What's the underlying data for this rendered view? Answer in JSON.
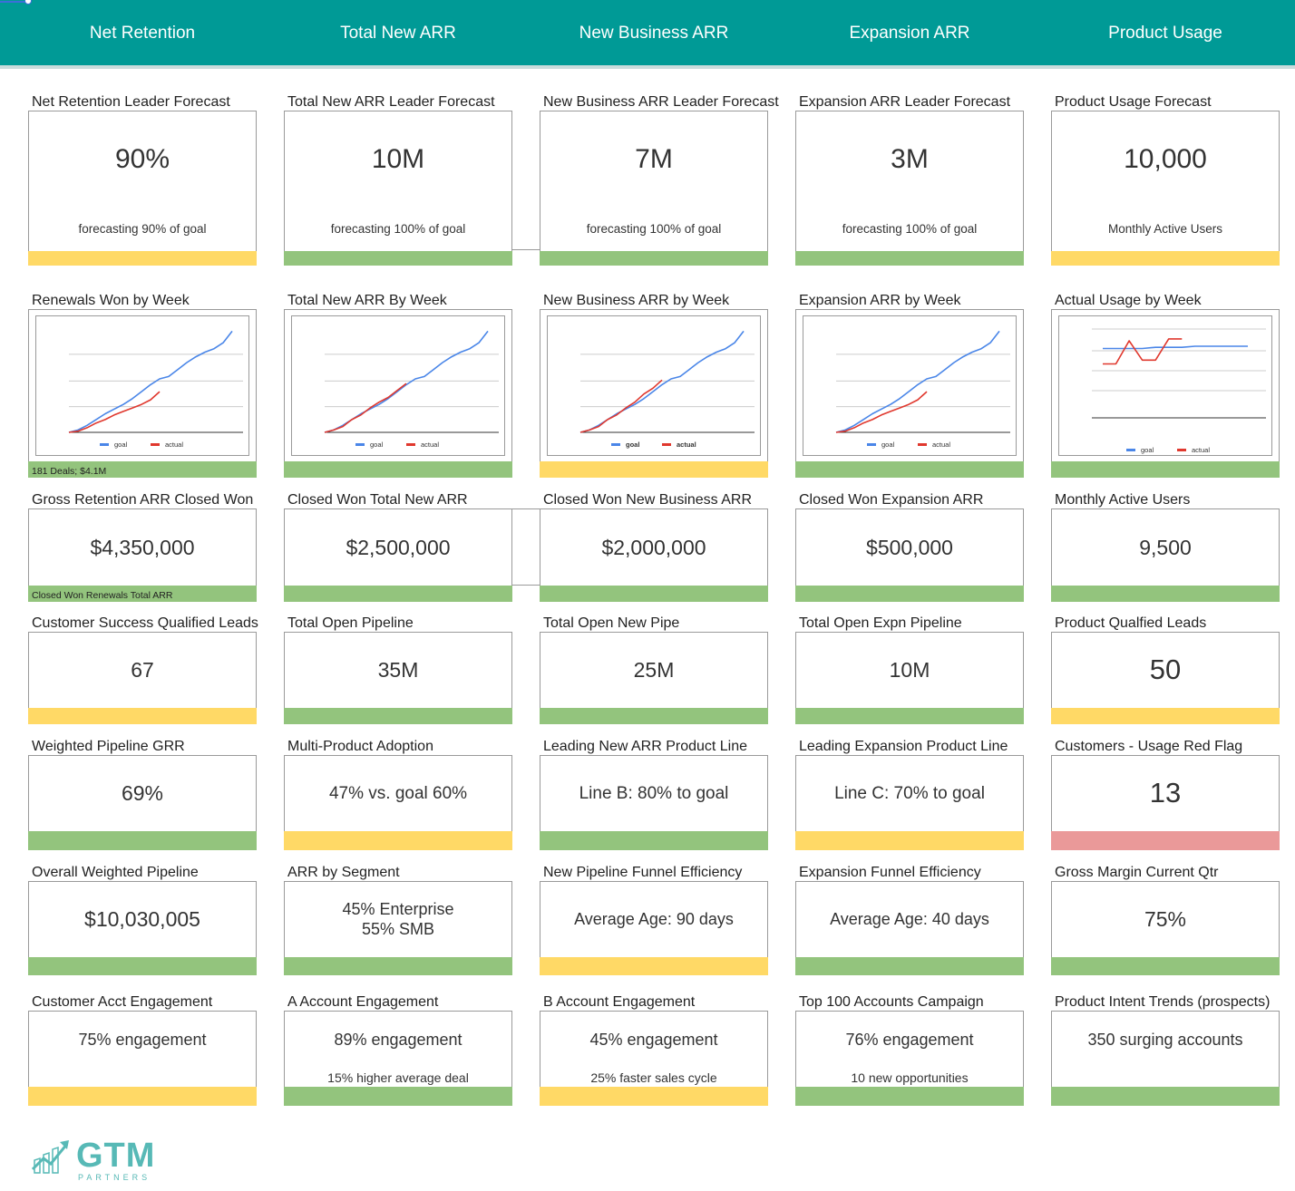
{
  "tabs": [
    "Net Retention",
    "Total New ARR",
    "New Business ARR",
    "Expansion ARR",
    "Product Usage"
  ],
  "row1": [
    {
      "label": "Net Retention Leader Forecast",
      "value": "90%",
      "sub": "forecasting 90% of goal",
      "status": "yellow"
    },
    {
      "label": "Total New ARR Leader Forecast",
      "value": "10M",
      "sub": "forecasting 100% of goal",
      "status": "green"
    },
    {
      "label": "New Business ARR Leader Forecast",
      "value": "7M",
      "sub": "forecasting 100% of goal",
      "status": "green"
    },
    {
      "label": "Expansion ARR Leader Forecast",
      "value": "3M",
      "sub": "forecasting 100% of goal",
      "status": "green"
    },
    {
      "label": "Product Usage Forecast",
      "value": "10,000",
      "sub": "Monthly Active Users",
      "status": "yellow"
    }
  ],
  "row2": [
    {
      "label": "Renewals Won by Week",
      "note": "181 Deals; $4.1M",
      "status": "green"
    },
    {
      "label": "Total New ARR By Week",
      "note": "",
      "status": "green"
    },
    {
      "label": "New Business ARR by Week",
      "note": "",
      "status": "yellow"
    },
    {
      "label": "Expansion ARR by Week",
      "note": "",
      "status": "green"
    },
    {
      "label": "Actual Usage by Week",
      "note": "",
      "status": "green"
    }
  ],
  "row3": [
    {
      "label": "Gross Retention ARR Closed Won",
      "value": "$4,350,000",
      "note": "Closed Won Renewals Total ARR",
      "status": "green"
    },
    {
      "label": "Closed Won Total New ARR",
      "value": "$2,500,000",
      "note": "",
      "status": "green"
    },
    {
      "label": "Closed Won New Business ARR",
      "value": "$2,000,000",
      "note": "",
      "status": "green"
    },
    {
      "label": "Closed Won Expansion ARR",
      "value": "$500,000",
      "note": "",
      "status": "green"
    },
    {
      "label": "Monthly Active Users",
      "value": "9,500",
      "note": "",
      "status": "green"
    }
  ],
  "row4": [
    {
      "label": "Customer Success Qualified Leads",
      "value": "67",
      "status": "yellow"
    },
    {
      "label": "Total Open Pipeline",
      "value": "35M",
      "status": "green"
    },
    {
      "label": "Total Open New Pipe",
      "value": "25M",
      "status": "green"
    },
    {
      "label": "Total Open Expn Pipeline",
      "value": "10M",
      "status": "green"
    },
    {
      "label": "Product Qualfied Leads",
      "value": "50",
      "status": "yellow"
    }
  ],
  "row5": [
    {
      "label": "Weighted Pipeline GRR",
      "value": "69%",
      "status": "green"
    },
    {
      "label": "Multi-Product Adoption",
      "value": "47% vs. goal 60%",
      "status": "yellow"
    },
    {
      "label": "Leading New ARR Product Line",
      "value": "Line B: 80% to goal",
      "status": "green"
    },
    {
      "label": "Leading Expansion Product Line",
      "value": "Line C: 70% to goal",
      "status": "yellow"
    },
    {
      "label": "Customers - Usage Red Flag",
      "value": "13",
      "status": "red"
    }
  ],
  "row6": [
    {
      "label": "Overall Weighted Pipeline",
      "value": "$10,030,005",
      "value2": "",
      "status": "green"
    },
    {
      "label": "ARR by Segment",
      "value": "45% Enterprise",
      "value2": "55% SMB",
      "status": "green"
    },
    {
      "label": "New Pipeline Funnel Efficiency",
      "value": "Average Age: 90 days",
      "value2": "",
      "status": "yellow"
    },
    {
      "label": "Expansion Funnel Efficiency",
      "value": "Average Age: 40 days",
      "value2": "",
      "status": "green"
    },
    {
      "label": "Gross Margin Current Qtr",
      "value": "75%",
      "value2": "",
      "status": "green"
    }
  ],
  "row7": [
    {
      "label": "Customer Acct Engagement",
      "value": "75% engagement",
      "sub": "",
      "status": "yellow"
    },
    {
      "label": "A Account Engagement",
      "value": "89% engagement",
      "sub": "15% higher average deal",
      "status": "green"
    },
    {
      "label": "B Account Engagement",
      "value": "45% engagement",
      "sub": "25% faster sales cycle",
      "status": "yellow"
    },
    {
      "label": "Top 100 Accounts Campaign",
      "value": "76% engagement",
      "sub": "10 new opportunities",
      "status": "green"
    },
    {
      "label": "Product Intent Trends (prospects)",
      "value": "350 surging accounts",
      "sub": "",
      "status": "green"
    }
  ],
  "chart_data": [
    {
      "type": "line",
      "legend": [
        "goal",
        "actual"
      ],
      "legend_position": "bottom",
      "series": [
        {
          "name": "goal",
          "values": [
            0,
            2,
            6,
            11,
            16,
            20,
            24,
            29,
            35,
            41,
            46,
            48,
            54,
            60,
            65,
            69,
            72,
            77,
            87
          ]
        },
        {
          "name": "actual",
          "values": [
            0,
            1,
            4,
            8,
            11,
            15,
            18,
            21,
            24,
            28,
            35
          ]
        }
      ]
    },
    {
      "type": "line",
      "legend": [
        "goal",
        "actual"
      ],
      "legend_position": "bottom",
      "series": [
        {
          "name": "goal",
          "values": [
            0,
            2,
            6,
            11,
            16,
            20,
            24,
            29,
            35,
            41,
            46,
            48,
            54,
            60,
            65,
            69,
            72,
            77,
            87
          ]
        },
        {
          "name": "actual",
          "values": [
            0,
            2,
            5,
            11,
            15,
            21,
            26,
            30,
            36,
            42
          ]
        }
      ]
    },
    {
      "type": "line",
      "legend": [
        "goal",
        "actual"
      ],
      "legend_position": "bottom",
      "series": [
        {
          "name": "goal",
          "values": [
            0,
            2,
            6,
            11,
            16,
            20,
            24,
            29,
            35,
            41,
            46,
            48,
            54,
            60,
            65,
            69,
            72,
            77,
            87
          ]
        },
        {
          "name": "actual",
          "values": [
            0,
            2,
            5,
            11,
            15,
            21,
            26,
            33,
            38,
            45
          ]
        }
      ]
    },
    {
      "type": "line",
      "legend": [
        "goal",
        "actual"
      ],
      "legend_position": "bottom",
      "series": [
        {
          "name": "goal",
          "values": [
            0,
            2,
            6,
            11,
            16,
            20,
            24,
            29,
            35,
            41,
            46,
            48,
            54,
            60,
            65,
            69,
            72,
            77,
            87
          ]
        },
        {
          "name": "actual",
          "values": [
            0,
            1,
            4,
            8,
            11,
            15,
            18,
            21,
            24,
            28,
            35
          ]
        }
      ]
    },
    {
      "type": "line",
      "legend": [
        "goal",
        "actual"
      ],
      "legend_position": "bottom",
      "series": [
        {
          "name": "goal",
          "values": [
            78,
            78,
            78,
            78,
            78.3,
            78.3,
            78.3,
            78.6,
            78.6,
            78.6,
            78.6,
            78.6
          ]
        },
        {
          "name": "actual",
          "values": [
            74,
            74,
            80,
            75,
            75,
            80.5,
            80.5
          ]
        }
      ]
    }
  ],
  "brand": {
    "logo_text": "GTM",
    "logo_sub": "PARTNERS",
    "accent": "#009a96",
    "green": "#93c47d",
    "yellow": "#ffd966",
    "red": "#ea9999"
  }
}
